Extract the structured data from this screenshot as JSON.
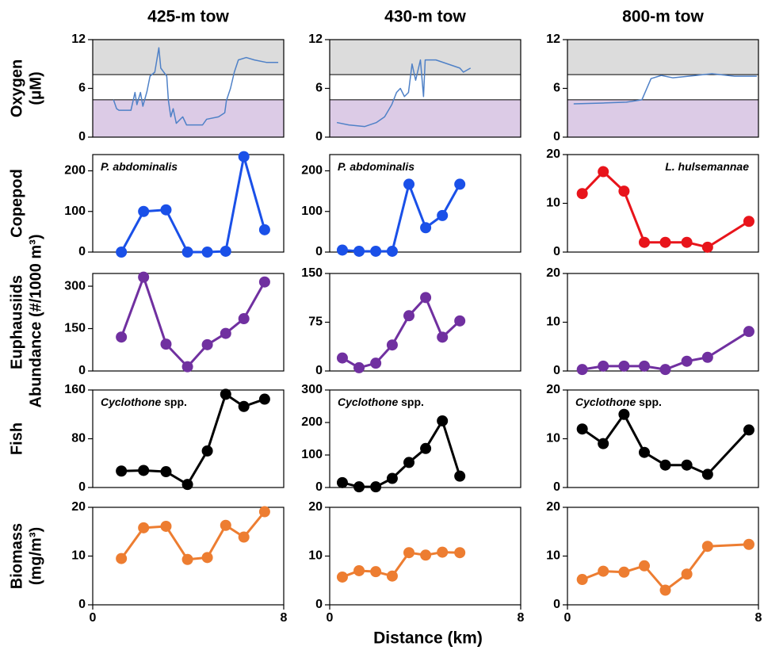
{
  "figure": {
    "row_labels": [
      [
        "Oxygen",
        "(μM)"
      ],
      [
        "Copepod"
      ],
      [
        "Euphausiids"
      ],
      [
        "Fish"
      ],
      [
        "Biomass",
        "(mg/m³)"
      ]
    ],
    "shared_label": "Abundance (#/1000 m³)",
    "x_label": "Distance (km)"
  },
  "chart_data": [
    {
      "type": "line",
      "title": "425-m tow",
      "color": "#4f81c7",
      "xlim": [
        0,
        8
      ],
      "ylim": [
        0,
        12
      ],
      "yticks": [
        0,
        6,
        12
      ],
      "bands": [
        {
          "from": 7.7,
          "to": 12,
          "color": "#dcdcdc"
        },
        {
          "from": 0,
          "to": 4.6,
          "color": "#dccbe6"
        }
      ],
      "x": [
        0.87,
        1.0,
        1.1,
        1.6,
        1.77,
        1.85,
        2.0,
        2.1,
        2.27,
        2.4,
        2.6,
        2.77,
        2.85,
        3.1,
        3.17,
        3.27,
        3.37,
        3.5,
        3.77,
        3.93,
        4.6,
        4.77,
        5.27,
        5.53,
        5.6,
        5.77,
        5.93,
        6.1,
        6.43,
        6.77,
        7.27,
        7.77
      ],
      "values": [
        4.6,
        3.5,
        3.3,
        3.3,
        5.5,
        4.0,
        5.5,
        3.8,
        5.6,
        7.5,
        8.0,
        11,
        8.5,
        7.5,
        4.5,
        2.5,
        3.5,
        1.7,
        2.5,
        1.5,
        1.5,
        2.2,
        2.5,
        3.0,
        4.5,
        6.0,
        8.0,
        9.5,
        9.8,
        9.5,
        9.2,
        9.2
      ]
    },
    {
      "type": "line",
      "title": "430-m tow",
      "color": "#4f81c7",
      "xlim": [
        0,
        8
      ],
      "ylim": [
        0,
        12
      ],
      "yticks": [
        0,
        6,
        12
      ],
      "bands": [
        {
          "from": 7.7,
          "to": 12,
          "color": "#dcdcdc"
        },
        {
          "from": 0,
          "to": 4.6,
          "color": "#dccbe6"
        }
      ],
      "x": [
        0.3,
        0.8,
        1.46,
        1.96,
        2.3,
        2.6,
        2.8,
        2.96,
        3.13,
        3.3,
        3.45,
        3.6,
        3.8,
        3.93,
        4.0,
        4.45,
        4.95,
        5.45,
        5.6,
        5.9
      ],
      "values": [
        1.8,
        1.5,
        1.3,
        1.8,
        2.5,
        4.0,
        5.5,
        6.0,
        5.0,
        5.5,
        9.0,
        7.0,
        9.5,
        5.0,
        9.5,
        9.5,
        9.0,
        8.5,
        8.0,
        8.5
      ]
    },
    {
      "type": "line",
      "title": "800-m tow",
      "color": "#4f81c7",
      "xlim": [
        0,
        8
      ],
      "ylim": [
        0,
        12
      ],
      "yticks": [
        0,
        6,
        12
      ],
      "bands": [
        {
          "from": 7.7,
          "to": 12,
          "color": "#dcdcdc"
        },
        {
          "from": 0,
          "to": 4.6,
          "color": "#dccbe6"
        }
      ],
      "x": [
        0.26,
        1.5,
        2.47,
        3.12,
        3.5,
        3.93,
        4.42,
        5.4,
        6.05,
        7.0,
        7.93
      ],
      "values": [
        4.1,
        4.2,
        4.3,
        4.6,
        7.2,
        7.6,
        7.3,
        7.6,
        7.8,
        7.5,
        7.5
      ]
    },
    {
      "type": "line",
      "markers": true,
      "color": "#1a50e8",
      "xlim": [
        0,
        8
      ],
      "ylim": [
        0,
        240
      ],
      "yticks": [
        0,
        100,
        200
      ],
      "annotation": [
        {
          "text": "P. abdominalis",
          "italic": true
        }
      ],
      "annotation_corner": "upper left",
      "x": [
        1.2,
        2.13,
        3.07,
        3.97,
        4.8,
        5.57,
        6.33,
        7.2
      ],
      "values": [
        0,
        100,
        104,
        0,
        0,
        2,
        235,
        55
      ]
    },
    {
      "type": "line",
      "markers": true,
      "color": "#1a50e8",
      "xlim": [
        0,
        8
      ],
      "ylim": [
        0,
        240
      ],
      "yticks": [
        0,
        100,
        200
      ],
      "annotation": [
        {
          "text": "P. abdominalis",
          "italic": true
        }
      ],
      "annotation_corner": "upper left",
      "x": [
        0.53,
        1.23,
        1.93,
        2.62,
        3.32,
        4.02,
        4.72,
        5.45
      ],
      "values": [
        5,
        2,
        2,
        2,
        167,
        60,
        90,
        167
      ]
    },
    {
      "type": "line",
      "markers": true,
      "color": "#e8141b",
      "xlim": [
        0,
        8
      ],
      "ylim": [
        0,
        20
      ],
      "yticks": [
        0,
        10,
        20
      ],
      "annotation": [
        {
          "text": "L. hulsemannae",
          "italic": true
        }
      ],
      "annotation_corner": "upper right",
      "x": [
        0.62,
        1.5,
        2.37,
        3.22,
        4.1,
        5.0,
        5.87,
        7.6
      ],
      "values": [
        12,
        16.5,
        12.5,
        2,
        2,
        2,
        1,
        6.3
      ]
    },
    {
      "type": "line",
      "markers": true,
      "color": "#7030a0",
      "xlim": [
        0,
        8
      ],
      "ylim": [
        0,
        345
      ],
      "yticks": [
        0,
        150,
        300
      ],
      "x": [
        1.2,
        2.13,
        3.07,
        3.97,
        4.8,
        5.57,
        6.33,
        7.2
      ],
      "values": [
        120,
        332,
        95,
        15,
        93,
        133,
        185,
        315
      ]
    },
    {
      "type": "line",
      "markers": true,
      "color": "#7030a0",
      "xlim": [
        0,
        8
      ],
      "ylim": [
        0,
        150
      ],
      "yticks": [
        0,
        75,
        150
      ],
      "x": [
        0.53,
        1.23,
        1.93,
        2.62,
        3.32,
        4.02,
        4.72,
        5.45
      ],
      "values": [
        20,
        5,
        12,
        40,
        85,
        113,
        52,
        77
      ]
    },
    {
      "type": "line",
      "markers": true,
      "color": "#7030a0",
      "xlim": [
        0,
        8
      ],
      "ylim": [
        0,
        20
      ],
      "yticks": [
        0,
        10,
        20
      ],
      "x": [
        0.62,
        1.5,
        2.37,
        3.22,
        4.1,
        5.0,
        5.87,
        7.6
      ],
      "values": [
        0.3,
        1,
        1,
        1,
        0.3,
        2,
        2.8,
        8.1
      ]
    },
    {
      "type": "line",
      "markers": true,
      "color": "#000000",
      "xlim": [
        0,
        8
      ],
      "ylim": [
        0,
        160
      ],
      "yticks": [
        0,
        80,
        160
      ],
      "annotation": [
        {
          "text": "Cyclothone",
          "italic": true
        },
        {
          "text": " spp.",
          "italic": false
        }
      ],
      "annotation_corner": "upper left",
      "x": [
        1.2,
        2.13,
        3.07,
        3.97,
        4.8,
        5.57,
        6.33,
        7.2
      ],
      "values": [
        27,
        28,
        26,
        5,
        60,
        153,
        133,
        145
      ]
    },
    {
      "type": "line",
      "markers": true,
      "color": "#000000",
      "xlim": [
        0,
        8
      ],
      "ylim": [
        0,
        300
      ],
      "yticks": [
        0,
        100,
        200,
        300
      ],
      "annotation": [
        {
          "text": "Cyclothone",
          "italic": true
        },
        {
          "text": " spp.",
          "italic": false
        }
      ],
      "annotation_corner": "upper left",
      "x": [
        0.53,
        1.23,
        1.93,
        2.62,
        3.32,
        4.02,
        4.72,
        5.45
      ],
      "values": [
        15,
        2,
        2,
        28,
        77,
        120,
        205,
        35
      ]
    },
    {
      "type": "line",
      "markers": true,
      "color": "#000000",
      "xlim": [
        0,
        8
      ],
      "ylim": [
        0,
        20
      ],
      "yticks": [
        0,
        10,
        20
      ],
      "annotation": [
        {
          "text": "Cyclothone",
          "italic": true
        },
        {
          "text": " spp.",
          "italic": false
        }
      ],
      "annotation_corner": "upper left",
      "x": [
        0.62,
        1.5,
        2.37,
        3.22,
        4.1,
        5.0,
        5.87,
        7.6
      ],
      "values": [
        12,
        9,
        15,
        7.2,
        4.6,
        4.6,
        2.7,
        11.8
      ]
    },
    {
      "type": "line",
      "markers": true,
      "color": "#ed7d31",
      "xlim": [
        0,
        8
      ],
      "xticks": [
        0,
        8
      ],
      "ylim": [
        0,
        20
      ],
      "yticks": [
        0,
        10,
        20
      ],
      "x": [
        1.2,
        2.13,
        3.07,
        3.97,
        4.8,
        5.57,
        6.33,
        7.2
      ],
      "values": [
        9.5,
        15.8,
        16.1,
        9.3,
        9.7,
        16.3,
        13.9,
        19.1
      ]
    },
    {
      "type": "line",
      "markers": true,
      "color": "#ed7d31",
      "xlim": [
        0,
        8
      ],
      "xticks": [
        0,
        8
      ],
      "ylim": [
        0,
        20
      ],
      "yticks": [
        0,
        10,
        20
      ],
      "x": [
        0.53,
        1.23,
        1.93,
        2.62,
        3.32,
        4.02,
        4.72,
        5.45
      ],
      "values": [
        5.7,
        7,
        6.8,
        5.9,
        10.7,
        10.2,
        10.8,
        10.7
      ]
    },
    {
      "type": "line",
      "markers": true,
      "color": "#ed7d31",
      "xlim": [
        0,
        8
      ],
      "xticks": [
        0,
        8
      ],
      "ylim": [
        0,
        20
      ],
      "yticks": [
        0,
        10,
        20
      ],
      "x": [
        0.62,
        1.5,
        2.37,
        3.22,
        4.1,
        5.0,
        5.87,
        7.6
      ],
      "values": [
        5.2,
        6.9,
        6.7,
        8,
        3,
        6.3,
        12,
        12.4
      ]
    }
  ]
}
